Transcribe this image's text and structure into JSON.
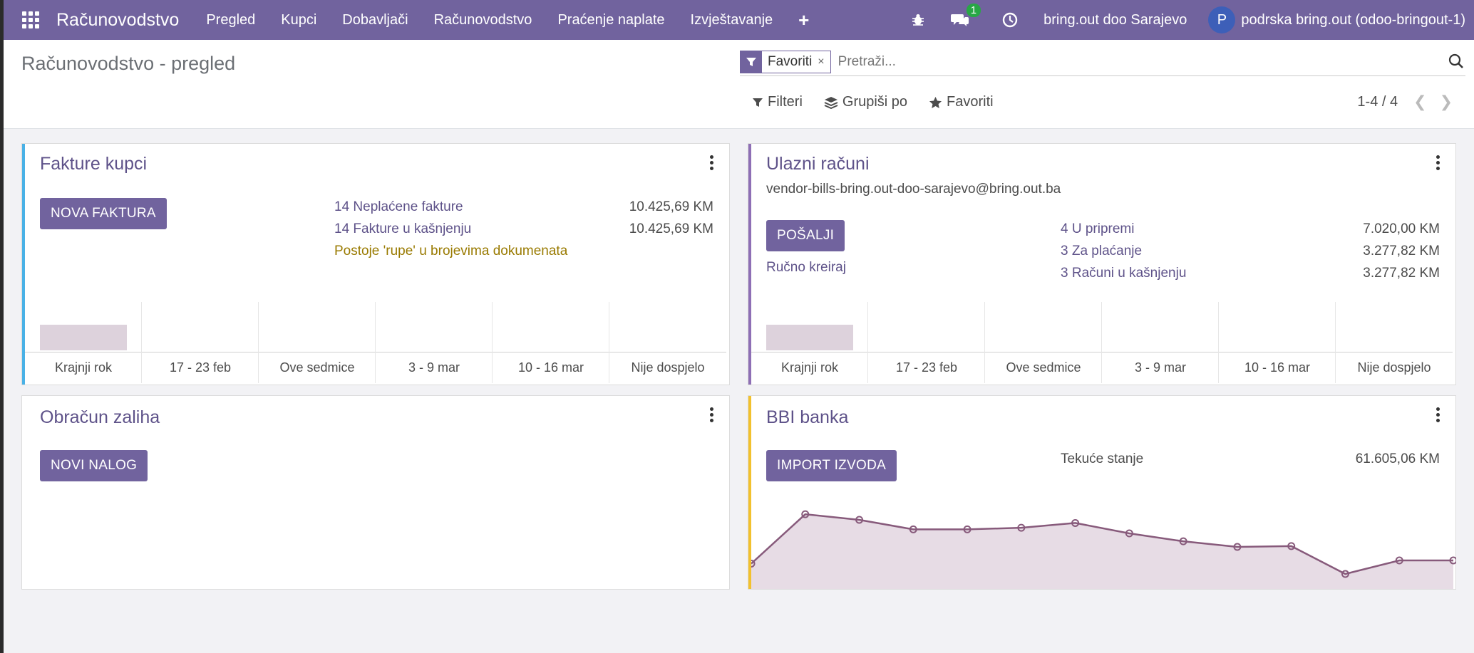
{
  "colors": {
    "navbar": "#71639e",
    "accent": "#5e5289",
    "customer_stripe": "#49b1e6",
    "vendor_stripe": "#8e6fb5",
    "bank_stripe": "#f2c12e",
    "warning": "#997a00",
    "bar_fill": "#ddd2dc",
    "line": "#875a7b",
    "area_fill": "#e7dce5"
  },
  "navbar": {
    "brand": "Računovodstvo",
    "menu": [
      {
        "label": "Pregled"
      },
      {
        "label": "Kupci"
      },
      {
        "label": "Dobavljači"
      },
      {
        "label": "Računovodstvo"
      },
      {
        "label": "Praćenje naplate"
      },
      {
        "label": "Izvještavanje"
      }
    ],
    "plus": "+",
    "messages_badge": "1",
    "company": "bring.out doo Sarajevo",
    "avatar_letter": "P",
    "user": "podrska bring.out (odoo-bringout-1)",
    "icons": [
      "apps-icon",
      "bug-icon",
      "messages-icon",
      "clock-icon"
    ]
  },
  "control": {
    "title": "Računovodstvo - pregled",
    "facet": "Favoriti",
    "facet_remove": "×",
    "search_placeholder": "Pretraži...",
    "filters": "Filteri",
    "group_by": "Grupiši po",
    "favorites": "Favoriti",
    "pager": "1-4 / 4"
  },
  "cards": {
    "customer": {
      "title": "Fakture kupci",
      "button": "NOVA FAKTURA",
      "rows": [
        {
          "label": "14 Neplaćene fakture",
          "amount": "10.425,69 KM"
        },
        {
          "label": "14 Fakture u kašnjenju",
          "amount": "10.425,69 KM"
        }
      ],
      "warning": "Postoje 'rupe' u brojevima dokumenata",
      "chart_labels": [
        "Krajnji rok",
        "17 - 23 feb",
        "Ove sedmice",
        "3 - 9 mar",
        "10 - 16 mar",
        "Nije dospjelo"
      ]
    },
    "vendor": {
      "title": "Ulazni računi",
      "email": "vendor-bills-bring.out-doo-sarajevo@bring.out.ba",
      "button": "POŠALJI",
      "manual": "Ručno kreiraj",
      "rows": [
        {
          "label": "4 U pripremi",
          "amount": "7.020,00 KM"
        },
        {
          "label": "3 Za plaćanje",
          "amount": "3.277,82 KM"
        },
        {
          "label": "3 Računi u kašnjenju",
          "amount": "3.277,82 KM"
        }
      ],
      "chart_labels": [
        "Krajnji rok",
        "17 - 23 feb",
        "Ove sedmice",
        "3 - 9 mar",
        "10 - 16 mar",
        "Nije dospjelo"
      ]
    },
    "stock": {
      "title": "Obračun zaliha",
      "button": "NOVI NALOG"
    },
    "bank": {
      "title": "BBI banka",
      "button": "IMPORT IZVODA",
      "balance_label": "Tekuće stanje",
      "balance": "61.605,06 KM"
    }
  },
  "chart_data": [
    {
      "type": "bar",
      "categories": [
        "Krajnji rok",
        "17 - 23 feb",
        "Ove sedmice",
        "3 - 9 mar",
        "10 - 16 mar",
        "Nije dospjelo"
      ],
      "values": [
        1,
        0,
        0,
        0,
        0,
        0
      ],
      "note_series": "Fakture kupci"
    },
    {
      "type": "bar",
      "categories": [
        "Krajnji rok",
        "17 - 23 feb",
        "Ove sedmice",
        "3 - 9 mar",
        "10 - 16 mar",
        "Nije dospjelo"
      ],
      "values": [
        1,
        0,
        0,
        0,
        0,
        0
      ]
    },
    {
      "type": "area",
      "values": [
        0.3,
        0.92,
        0.85,
        0.73,
        0.73,
        0.75,
        0.81,
        0.68,
        0.58,
        0.51,
        0.52,
        0.17,
        0.34,
        0.34
      ]
    }
  ]
}
